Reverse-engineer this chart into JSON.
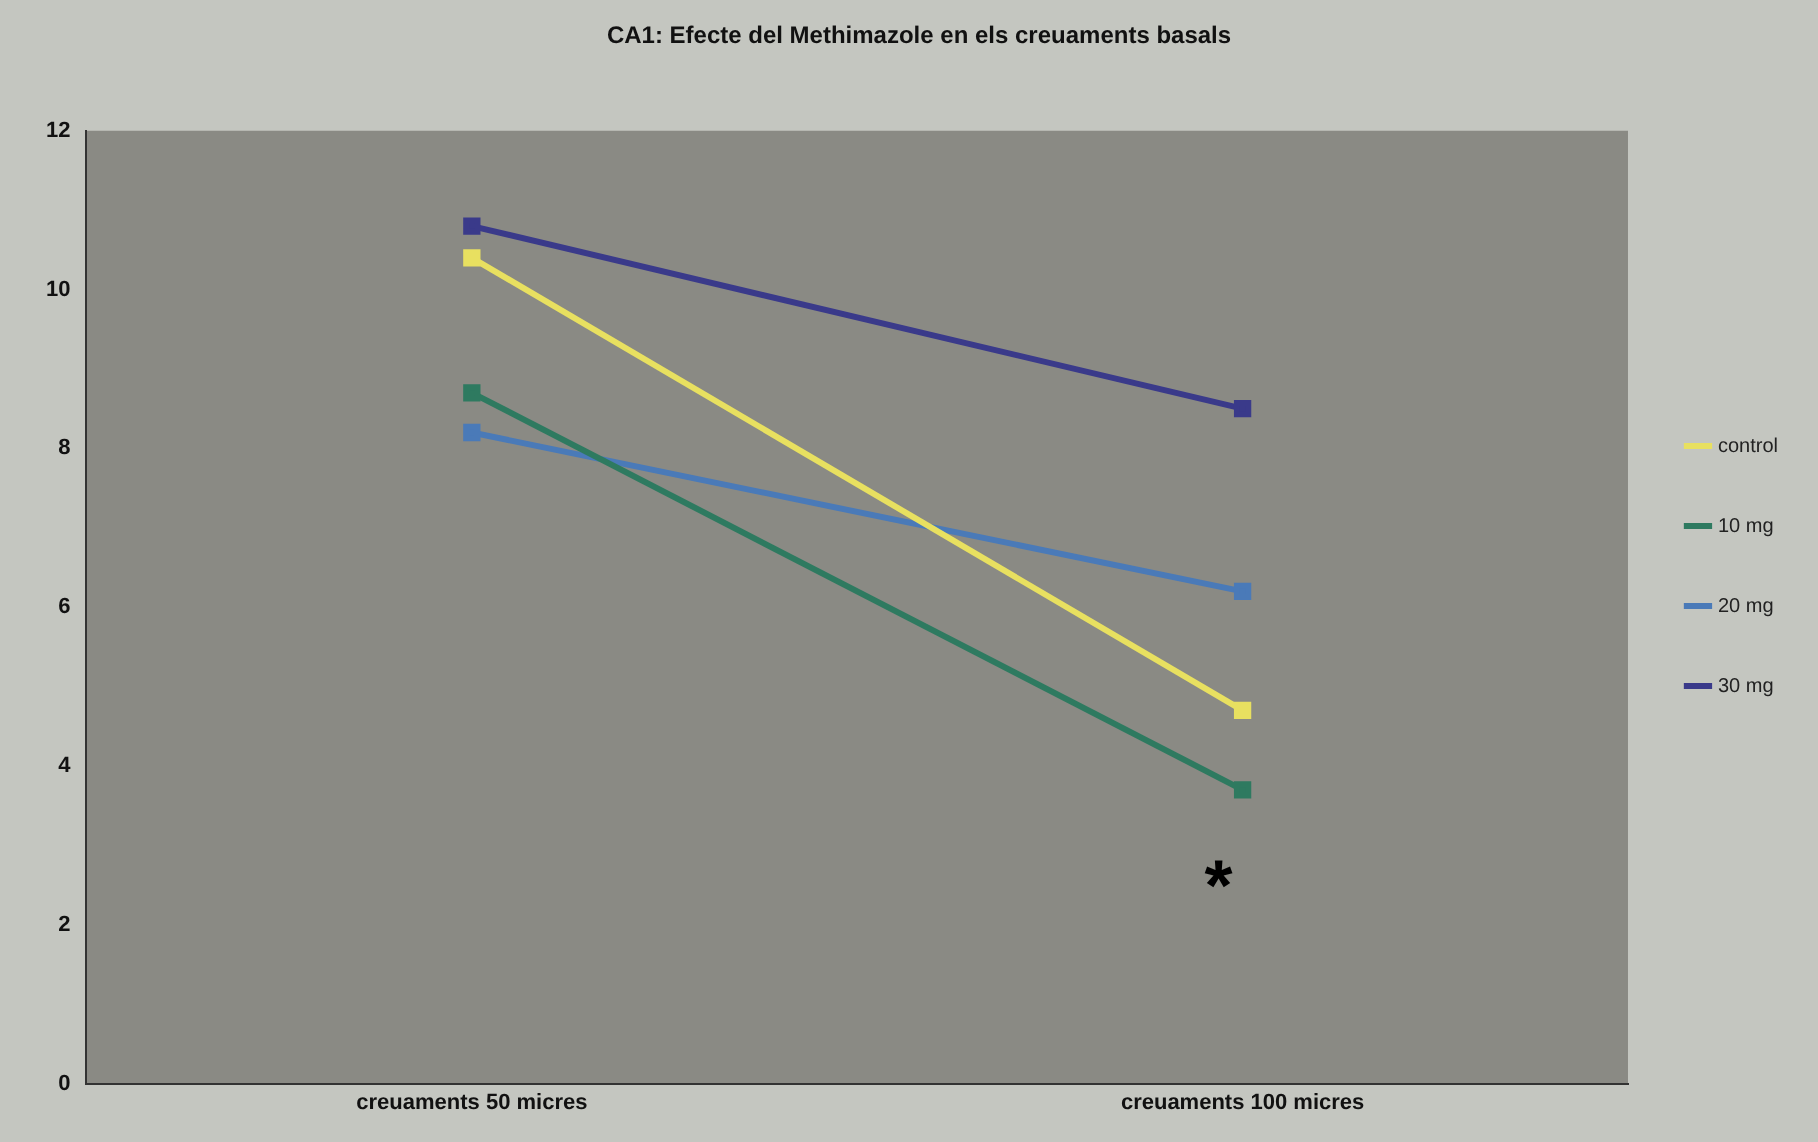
{
  "chart_data": {
    "type": "line",
    "title": "CA1: Efecte del Methimazole en els creuaments basals",
    "categories": [
      "creuaments 50 micres",
      "creuaments 100 micres"
    ],
    "series": [
      {
        "name": "control",
        "color": "#e8e060",
        "values": [
          10.4,
          4.7
        ]
      },
      {
        "name": "10 mg",
        "color": "#2e7a60",
        "values": [
          8.7,
          3.7
        ]
      },
      {
        "name": "20 mg",
        "color": "#4a7ab8",
        "values": [
          8.2,
          6.2
        ]
      },
      {
        "name": "30 mg",
        "color": "#3a3a8a",
        "values": [
          10.8,
          8.5
        ]
      }
    ],
    "ylim": [
      0,
      12
    ],
    "yticks": [
      0,
      2,
      4,
      6,
      8,
      10,
      12
    ],
    "grid": false,
    "legend": "right",
    "marker": "square",
    "annotations": [
      "*"
    ]
  }
}
